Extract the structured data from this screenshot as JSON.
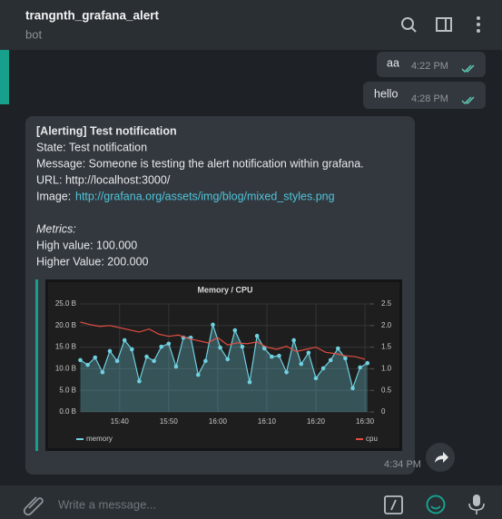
{
  "header": {
    "title": "trangnth_grafana_alert",
    "subtitle": "bot"
  },
  "messages": [
    {
      "text": "aa",
      "time": "4:22 PM"
    },
    {
      "text": "hello",
      "time": "4:28 PM"
    }
  ],
  "alert": {
    "heading": "[Alerting] Test notification",
    "state": "State: Test notification",
    "message": "Message: Someone is testing the alert notification within grafana.",
    "url": "URL: http://localhost:3000/",
    "image_label": "Image:",
    "image_url": "http://grafana.org/assets/img/blog/mixed_styles.png",
    "metrics_heading": "Metrics:",
    "high": "High value: 100.000",
    "higher": "Higher Value: 200.000",
    "time": "4:34 PM"
  },
  "chart_data": {
    "type": "line",
    "title": "Memory / CPU",
    "xlim": [
      931.9,
      991.1
    ],
    "xticks": [
      {
        "value": 940,
        "label": "15:40"
      },
      {
        "value": 950,
        "label": "15:50"
      },
      {
        "value": 960,
        "label": "16:00"
      },
      {
        "value": 970,
        "label": "16:10"
      },
      {
        "value": 980,
        "label": "16:20"
      },
      {
        "value": 990,
        "label": "16:30"
      }
    ],
    "ylim": [
      0,
      25
    ],
    "yticks": [
      {
        "value": 0,
        "label": "0.0 B"
      },
      {
        "value": 5,
        "label": "5.0 B"
      },
      {
        "value": 10,
        "label": "10.0 B"
      },
      {
        "value": 15,
        "label": "15.0 B"
      },
      {
        "value": 20,
        "label": "20.0 B"
      },
      {
        "value": 25,
        "label": "25.0 B"
      }
    ],
    "y2lim": [
      0,
      2.5
    ],
    "y2ticks": [
      0,
      0.5,
      {
        "value": 1,
        "label": "1.0"
      },
      {
        "value": 1.5,
        "label": "1.5"
      },
      {
        "value": 2,
        "label": "2.0"
      },
      {
        "value": 2.5,
        "label": "2.5"
      }
    ],
    "grid": true,
    "series": [
      {
        "name": "memory",
        "color": "#6ed0e0",
        "x": [
          932,
          933.5,
          935,
          936.5,
          938,
          939.5,
          941,
          942.5,
          944,
          945.5,
          947,
          948.5,
          950,
          951.5,
          953,
          954.5,
          956,
          957.5,
          959,
          960.5,
          962,
          963.5,
          965,
          966.5,
          968,
          969.5,
          971,
          972.5,
          974,
          975.5,
          977,
          978.5,
          980,
          981.5,
          983,
          984.5,
          986,
          987.5,
          989,
          990.5
        ],
        "values": [
          12.0,
          10.9,
          12.6,
          9.2,
          14.1,
          11.8,
          16.6,
          14.5,
          7.1,
          12.8,
          11.8,
          15.1,
          15.8,
          10.5,
          17.2,
          17.2,
          8.6,
          11.8,
          20.2,
          14.9,
          12.2,
          18.9,
          15.1,
          6.9,
          17.6,
          14.7,
          12.8,
          13.0,
          9.2,
          16.6,
          11.1,
          13.7,
          7.8,
          10.1,
          12.0,
          14.7,
          12.4,
          5.5,
          10.3,
          11.3
        ]
      },
      {
        "name": "cpu",
        "color": "#e24d42",
        "axis": "y2",
        "x": [
          932,
          934,
          936,
          938,
          940,
          942,
          944,
          946,
          948,
          950,
          952,
          954,
          956,
          958,
          960,
          962,
          964,
          966,
          968,
          970,
          972,
          974,
          976,
          978,
          980,
          982,
          984,
          986,
          988,
          990
        ],
        "values": [
          2.08,
          2.02,
          1.98,
          2.0,
          1.95,
          1.9,
          1.85,
          1.92,
          1.8,
          1.75,
          1.78,
          1.7,
          1.65,
          1.6,
          1.72,
          1.55,
          1.6,
          1.58,
          1.62,
          1.5,
          1.45,
          1.52,
          1.4,
          1.45,
          1.5,
          1.38,
          1.35,
          1.3,
          1.28,
          1.22
        ]
      }
    ]
  },
  "composer": {
    "placeholder": "Write a message..."
  }
}
